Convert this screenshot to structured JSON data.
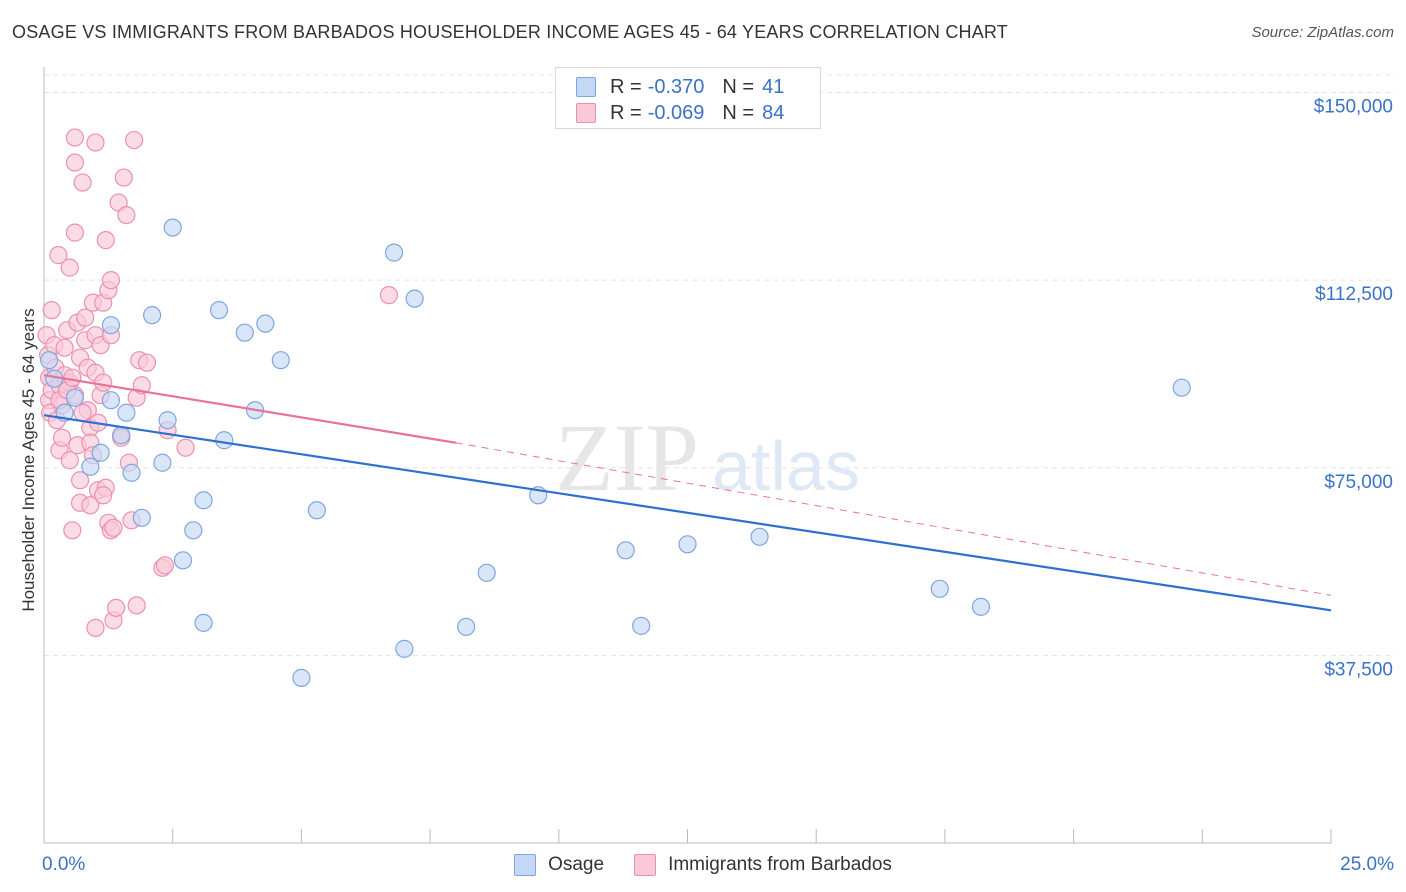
{
  "title": "OSAGE VS IMMIGRANTS FROM BARBADOS HOUSEHOLDER INCOME AGES 45 - 64 YEARS CORRELATION CHART",
  "source": "Source: ZipAtlas.com",
  "watermark": {
    "zip": "ZIP",
    "atlas": "atlas"
  },
  "legend": {
    "rows": [
      {
        "r_label": "R =",
        "r_value": "-0.370",
        "n_label": "N =",
        "n_value": "41"
      },
      {
        "r_label": "R =",
        "r_value": "-0.069",
        "n_label": "N =",
        "n_value": "84"
      }
    ]
  },
  "colors": {
    "osage_fill": "#c4d8f5",
    "osage_stroke": "#7fa6e0",
    "osage_line": "#2f6fcf",
    "barbados_fill": "#f9c9d8",
    "barbados_stroke": "#ec90b0",
    "barbados_line": "#e8739a",
    "axis_label": "#3a72c8",
    "grid": "#e4e4e4"
  },
  "chart_data": {
    "type": "scatter",
    "title": "OSAGE VS IMMIGRANTS FROM BARBADOS HOUSEHOLDER INCOME AGES 45 - 64 YEARS CORRELATION CHART",
    "xlabel": "",
    "ylabel": "Householder Income Ages 45 - 64 years",
    "xlim": [
      0,
      25
    ],
    "ylim": [
      0,
      153500
    ],
    "x_tick_labels": [
      "0.0%",
      "25.0%"
    ],
    "y_ticks": [
      37500,
      75000,
      112500,
      150000
    ],
    "y_tick_labels": [
      "$37,500",
      "$75,000",
      "$112,500",
      "$150,000"
    ],
    "grid": true,
    "legend_position": "top-center",
    "series": [
      {
        "name": "Osage",
        "R": -0.37,
        "N": 41,
        "trend": {
          "x": [
            0,
            25
          ],
          "y": [
            85500,
            46500
          ],
          "dashed_extension": false
        },
        "points": [
          {
            "x": 0.2,
            "y": 92800
          },
          {
            "x": 0.4,
            "y": 86000
          },
          {
            "x": 0.6,
            "y": 89000
          },
          {
            "x": 0.9,
            "y": 75200
          },
          {
            "x": 1.1,
            "y": 78000
          },
          {
            "x": 1.3,
            "y": 103500
          },
          {
            "x": 1.3,
            "y": 88500
          },
          {
            "x": 1.5,
            "y": 81500
          },
          {
            "x": 1.6,
            "y": 86000
          },
          {
            "x": 1.7,
            "y": 74000
          },
          {
            "x": 1.9,
            "y": 65000
          },
          {
            "x": 2.1,
            "y": 105500
          },
          {
            "x": 2.3,
            "y": 76000
          },
          {
            "x": 2.4,
            "y": 84500
          },
          {
            "x": 2.5,
            "y": 123000
          },
          {
            "x": 2.7,
            "y": 56500
          },
          {
            "x": 2.9,
            "y": 62500
          },
          {
            "x": 3.1,
            "y": 68500
          },
          {
            "x": 3.1,
            "y": 44000
          },
          {
            "x": 3.4,
            "y": 106500
          },
          {
            "x": 3.5,
            "y": 80500
          },
          {
            "x": 3.9,
            "y": 102000
          },
          {
            "x": 4.1,
            "y": 86500
          },
          {
            "x": 4.3,
            "y": 103800
          },
          {
            "x": 4.6,
            "y": 96500
          },
          {
            "x": 5.0,
            "y": 33000
          },
          {
            "x": 5.3,
            "y": 66500
          },
          {
            "x": 6.8,
            "y": 118000
          },
          {
            "x": 7.0,
            "y": 38800
          },
          {
            "x": 7.2,
            "y": 108800
          },
          {
            "x": 8.2,
            "y": 43200
          },
          {
            "x": 8.6,
            "y": 54000
          },
          {
            "x": 9.6,
            "y": 69500
          },
          {
            "x": 11.3,
            "y": 58500
          },
          {
            "x": 11.6,
            "y": 43400
          },
          {
            "x": 12.5,
            "y": 59700
          },
          {
            "x": 13.9,
            "y": 61200
          },
          {
            "x": 17.4,
            "y": 50800
          },
          {
            "x": 18.2,
            "y": 47200
          },
          {
            "x": 22.1,
            "y": 91000
          },
          {
            "x": 0.1,
            "y": 96500
          }
        ]
      },
      {
        "name": "Immigrants from Barbados",
        "R": -0.069,
        "N": 84,
        "trend": {
          "x": [
            0,
            8.0
          ],
          "y": [
            93500,
            80000
          ],
          "dashed_extension": {
            "x": [
              8.0,
              25
            ],
            "y": [
              80000,
              49500
            ]
          }
        },
        "points": [
          {
            "x": 0.05,
            "y": 101500
          },
          {
            "x": 0.08,
            "y": 97500
          },
          {
            "x": 0.1,
            "y": 93000
          },
          {
            "x": 0.1,
            "y": 88500
          },
          {
            "x": 0.12,
            "y": 86000
          },
          {
            "x": 0.15,
            "y": 106500
          },
          {
            "x": 0.15,
            "y": 90500
          },
          {
            "x": 0.2,
            "y": 99500
          },
          {
            "x": 0.22,
            "y": 95000
          },
          {
            "x": 0.25,
            "y": 84500
          },
          {
            "x": 0.28,
            "y": 117500
          },
          {
            "x": 0.3,
            "y": 78500
          },
          {
            "x": 0.3,
            "y": 91500
          },
          {
            "x": 0.35,
            "y": 81000
          },
          {
            "x": 0.35,
            "y": 87500
          },
          {
            "x": 0.4,
            "y": 99000
          },
          {
            "x": 0.4,
            "y": 93500
          },
          {
            "x": 0.45,
            "y": 102500
          },
          {
            "x": 0.5,
            "y": 115000
          },
          {
            "x": 0.5,
            "y": 92000
          },
          {
            "x": 0.5,
            "y": 76500
          },
          {
            "x": 0.55,
            "y": 62500
          },
          {
            "x": 0.6,
            "y": 122000
          },
          {
            "x": 0.6,
            "y": 89500
          },
          {
            "x": 0.6,
            "y": 136000
          },
          {
            "x": 0.6,
            "y": 141000
          },
          {
            "x": 0.65,
            "y": 104000
          },
          {
            "x": 0.65,
            "y": 79500
          },
          {
            "x": 0.7,
            "y": 72500
          },
          {
            "x": 0.7,
            "y": 68000
          },
          {
            "x": 0.7,
            "y": 97000
          },
          {
            "x": 0.75,
            "y": 132000
          },
          {
            "x": 0.8,
            "y": 105000
          },
          {
            "x": 0.8,
            "y": 100500
          },
          {
            "x": 0.85,
            "y": 95000
          },
          {
            "x": 0.85,
            "y": 86500
          },
          {
            "x": 0.9,
            "y": 83000
          },
          {
            "x": 0.9,
            "y": 80000
          },
          {
            "x": 0.9,
            "y": 67500
          },
          {
            "x": 0.95,
            "y": 108000
          },
          {
            "x": 1.0,
            "y": 140000
          },
          {
            "x": 1.0,
            "y": 101500
          },
          {
            "x": 1.0,
            "y": 94000
          },
          {
            "x": 1.0,
            "y": 43000
          },
          {
            "x": 1.05,
            "y": 84000
          },
          {
            "x": 1.05,
            "y": 70500
          },
          {
            "x": 1.1,
            "y": 99500
          },
          {
            "x": 1.1,
            "y": 89500
          },
          {
            "x": 1.15,
            "y": 108000
          },
          {
            "x": 1.15,
            "y": 92000
          },
          {
            "x": 1.2,
            "y": 120500
          },
          {
            "x": 1.2,
            "y": 71000
          },
          {
            "x": 1.25,
            "y": 110500
          },
          {
            "x": 1.25,
            "y": 64000
          },
          {
            "x": 1.3,
            "y": 112500
          },
          {
            "x": 1.3,
            "y": 101500
          },
          {
            "x": 1.3,
            "y": 62500
          },
          {
            "x": 1.35,
            "y": 44500
          },
          {
            "x": 1.4,
            "y": 47000
          },
          {
            "x": 1.45,
            "y": 128000
          },
          {
            "x": 1.5,
            "y": 81500
          },
          {
            "x": 1.5,
            "y": 81000
          },
          {
            "x": 1.55,
            "y": 133000
          },
          {
            "x": 1.6,
            "y": 125500
          },
          {
            "x": 1.65,
            "y": 76000
          },
          {
            "x": 1.7,
            "y": 64500
          },
          {
            "x": 1.75,
            "y": 140500
          },
          {
            "x": 1.8,
            "y": 89000
          },
          {
            "x": 1.8,
            "y": 47500
          },
          {
            "x": 1.85,
            "y": 96500
          },
          {
            "x": 1.9,
            "y": 91500
          },
          {
            "x": 2.0,
            "y": 96000
          },
          {
            "x": 2.3,
            "y": 55000
          },
          {
            "x": 2.35,
            "y": 55500
          },
          {
            "x": 2.4,
            "y": 82500
          },
          {
            "x": 2.75,
            "y": 79000
          },
          {
            "x": 6.7,
            "y": 109500
          },
          {
            "x": 0.3,
            "y": 88500
          },
          {
            "x": 0.45,
            "y": 90500
          },
          {
            "x": 0.55,
            "y": 93000
          },
          {
            "x": 0.75,
            "y": 86000
          },
          {
            "x": 0.95,
            "y": 77500
          },
          {
            "x": 1.15,
            "y": 69500
          },
          {
            "x": 1.35,
            "y": 63000
          }
        ]
      }
    ]
  }
}
